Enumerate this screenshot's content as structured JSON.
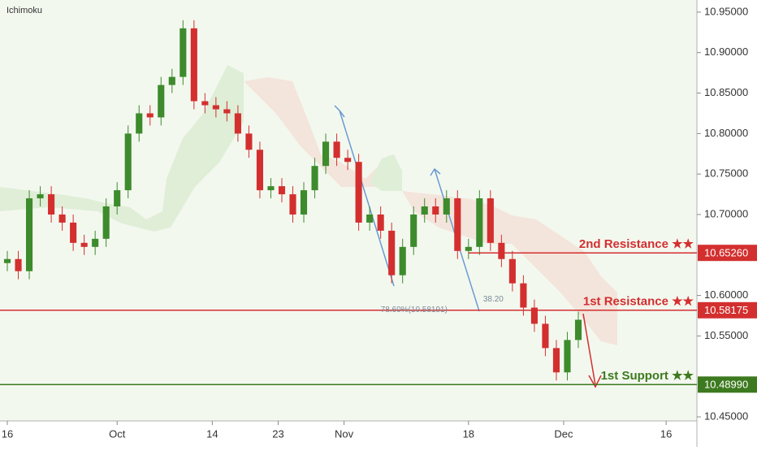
{
  "chart_data": {
    "type": "candlestick",
    "title": "Ichimoku",
    "x": [
      0,
      1.5,
      3,
      4.5,
      6,
      7.5,
      9,
      10.5,
      12,
      13.5,
      15,
      16.5,
      18,
      19.5,
      21,
      22.5,
      24,
      25.5,
      27,
      28.5,
      30,
      31.5,
      33,
      34.5,
      36,
      37.5,
      39,
      40.5,
      42,
      43.5,
      45,
      46.5,
      48,
      49.5,
      51,
      52.5,
      54,
      55.5,
      57,
      58.5,
      60,
      61.5,
      63,
      64.5,
      66,
      67.5,
      69,
      70.5,
      72,
      73.5,
      75,
      76.5,
      78
    ],
    "open": [
      10.64,
      10.645,
      10.63,
      10.72,
      10.725,
      10.7,
      10.69,
      10.665,
      10.66,
      10.67,
      10.71,
      10.73,
      10.8,
      10.825,
      10.82,
      10.86,
      10.87,
      10.93,
      10.84,
      10.835,
      10.83,
      10.825,
      10.8,
      10.78,
      10.73,
      10.735,
      10.725,
      10.7,
      10.73,
      10.76,
      10.79,
      10.77,
      10.765,
      10.69,
      10.7,
      10.68,
      10.625,
      10.66,
      10.7,
      10.71,
      10.7,
      10.72,
      10.655,
      10.66,
      10.72,
      10.665,
      10.645,
      10.615,
      10.585,
      10.565,
      10.535,
      10.505,
      10.545
    ],
    "high": [
      10.655,
      10.655,
      10.73,
      10.735,
      10.735,
      10.71,
      10.7,
      10.675,
      10.68,
      10.72,
      10.74,
      10.81,
      10.835,
      10.835,
      10.87,
      10.88,
      10.94,
      10.94,
      10.85,
      10.845,
      10.84,
      10.835,
      10.81,
      10.79,
      10.745,
      10.745,
      10.735,
      10.74,
      10.77,
      10.8,
      10.8,
      10.78,
      10.775,
      10.71,
      10.71,
      10.69,
      10.67,
      10.71,
      10.72,
      10.72,
      10.73,
      10.73,
      10.67,
      10.73,
      10.73,
      10.675,
      10.655,
      10.625,
      10.595,
      10.575,
      10.545,
      10.555,
      10.58
    ],
    "low": [
      10.63,
      10.62,
      10.62,
      10.71,
      10.69,
      10.68,
      10.655,
      10.65,
      10.65,
      10.66,
      10.7,
      10.72,
      10.79,
      10.81,
      10.81,
      10.85,
      10.86,
      10.83,
      10.825,
      10.82,
      10.815,
      10.79,
      10.77,
      10.72,
      10.72,
      10.715,
      10.69,
      10.69,
      10.72,
      10.75,
      10.76,
      10.755,
      10.68,
      10.68,
      10.67,
      10.615,
      10.615,
      10.65,
      10.69,
      10.69,
      10.69,
      10.645,
      10.645,
      10.65,
      10.655,
      10.635,
      10.605,
      10.575,
      10.555,
      10.525,
      10.495,
      10.495,
      10.535
    ],
    "close": [
      10.645,
      10.63,
      10.72,
      10.725,
      10.7,
      10.69,
      10.665,
      10.66,
      10.67,
      10.71,
      10.73,
      10.8,
      10.825,
      10.82,
      10.86,
      10.87,
      10.93,
      10.84,
      10.835,
      10.83,
      10.825,
      10.8,
      10.78,
      10.73,
      10.735,
      10.725,
      10.7,
      10.73,
      10.76,
      10.79,
      10.77,
      10.765,
      10.69,
      10.7,
      10.68,
      10.625,
      10.66,
      10.7,
      10.71,
      10.7,
      10.72,
      10.655,
      10.66,
      10.72,
      10.665,
      10.645,
      10.615,
      10.585,
      10.565,
      10.535,
      10.505,
      10.545,
      10.57
    ],
    "up_color": "#3d8b2c",
    "down_color": "#d32f2f",
    "xlim": [
      -1,
      94.2
    ],
    "xticks": [
      {
        "value": 0,
        "label": "16"
      },
      {
        "value": 15,
        "label": "Oct"
      },
      {
        "value": 28,
        "label": "14"
      },
      {
        "value": 37,
        "label": "23"
      },
      {
        "value": 46,
        "label": "Nov"
      },
      {
        "value": 63,
        "label": "18"
      },
      {
        "value": 76,
        "label": "Dec"
      },
      {
        "value": 90,
        "label": "16"
      }
    ],
    "ylim": [
      10.445,
      10.965
    ],
    "yticks": [
      {
        "value": 10.95,
        "label": "10.95000"
      },
      {
        "value": 10.9,
        "label": "10.90000"
      },
      {
        "value": 10.85,
        "label": "10.85000"
      },
      {
        "value": 10.8,
        "label": "10.80000"
      },
      {
        "value": 10.75,
        "label": "10.75000"
      },
      {
        "value": 10.7,
        "label": "10.70000"
      },
      {
        "value": 10.6,
        "label": "10.60000"
      },
      {
        "value": 10.55,
        "label": "10.55000"
      },
      {
        "value": 10.45,
        "label": "10.45000"
      }
    ],
    "levels": [
      {
        "name": "2nd Resistance ★★",
        "value": 10.6526,
        "label": "10.65260",
        "color": "#d32f2f",
        "from": 63
      },
      {
        "name": "1st Resistance ★★",
        "value": 10.58175,
        "label": "10.58175",
        "color": "#d32f2f",
        "from": -1
      },
      {
        "name": "1st Support ★★",
        "value": 10.4899,
        "label": "10.48990",
        "color": "#3d7a1f",
        "from": -1
      }
    ],
    "annotations": [
      {
        "text": "38.20",
        "x": 65,
        "y": 10.595
      },
      {
        "text": "78.60%(10.58191)",
        "x": 51,
        "y": 10.582
      }
    ]
  }
}
